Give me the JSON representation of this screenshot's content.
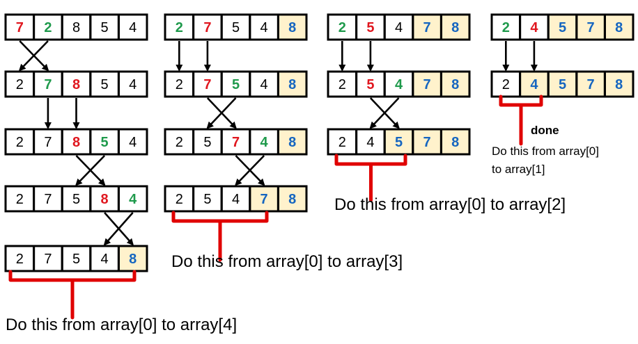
{
  "colors": {
    "default": "#000000",
    "red": "#e0171f",
    "green": "#1f9a4c",
    "blue": "#1565c0",
    "sorted_bg": "#fff2cc",
    "bracket": "#e00000"
  },
  "passes": [
    {
      "rows": [
        [
          {
            "v": "7",
            "c": "red"
          },
          {
            "v": "2",
            "c": "green"
          },
          {
            "v": "8"
          },
          {
            "v": "5"
          },
          {
            "v": "4"
          }
        ],
        [
          {
            "v": "2"
          },
          {
            "v": "7",
            "c": "green"
          },
          {
            "v": "8",
            "c": "red"
          },
          {
            "v": "5"
          },
          {
            "v": "4"
          }
        ],
        [
          {
            "v": "2"
          },
          {
            "v": "7"
          },
          {
            "v": "8",
            "c": "red"
          },
          {
            "v": "5",
            "c": "green"
          },
          {
            "v": "4"
          }
        ],
        [
          {
            "v": "2"
          },
          {
            "v": "7"
          },
          {
            "v": "5"
          },
          {
            "v": "8",
            "c": "red"
          },
          {
            "v": "4",
            "c": "green"
          }
        ],
        [
          {
            "v": "2"
          },
          {
            "v": "7"
          },
          {
            "v": "5"
          },
          {
            "v": "4"
          },
          {
            "v": "8",
            "c": "blue",
            "s": true
          }
        ]
      ],
      "transitions": [
        "swap",
        "down",
        "swap",
        "swap"
      ],
      "caption": "Do this from array[0] to array[4]"
    },
    {
      "rows": [
        [
          {
            "v": "2",
            "c": "green"
          },
          {
            "v": "7",
            "c": "red"
          },
          {
            "v": "5"
          },
          {
            "v": "4"
          },
          {
            "v": "8",
            "c": "blue",
            "s": true
          }
        ],
        [
          {
            "v": "2"
          },
          {
            "v": "7",
            "c": "red"
          },
          {
            "v": "5",
            "c": "green"
          },
          {
            "v": "4"
          },
          {
            "v": "8",
            "c": "blue",
            "s": true
          }
        ],
        [
          {
            "v": "2"
          },
          {
            "v": "5"
          },
          {
            "v": "7",
            "c": "red"
          },
          {
            "v": "4",
            "c": "green"
          },
          {
            "v": "8",
            "c": "blue",
            "s": true
          }
        ],
        [
          {
            "v": "2"
          },
          {
            "v": "5"
          },
          {
            "v": "4"
          },
          {
            "v": "7",
            "c": "blue",
            "s": true
          },
          {
            "v": "8",
            "c": "blue",
            "s": true
          }
        ]
      ],
      "transitions": [
        "down",
        "swap",
        "swap"
      ],
      "caption": "Do this from array[0] to array[3]"
    },
    {
      "rows": [
        [
          {
            "v": "2",
            "c": "green"
          },
          {
            "v": "5",
            "c": "red"
          },
          {
            "v": "4"
          },
          {
            "v": "7",
            "c": "blue",
            "s": true
          },
          {
            "v": "8",
            "c": "blue",
            "s": true
          }
        ],
        [
          {
            "v": "2"
          },
          {
            "v": "5",
            "c": "red"
          },
          {
            "v": "4",
            "c": "green"
          },
          {
            "v": "7",
            "c": "blue",
            "s": true
          },
          {
            "v": "8",
            "c": "blue",
            "s": true
          }
        ],
        [
          {
            "v": "2"
          },
          {
            "v": "4"
          },
          {
            "v": "5",
            "c": "blue",
            "s": true
          },
          {
            "v": "7",
            "c": "blue",
            "s": true
          },
          {
            "v": "8",
            "c": "blue",
            "s": true
          }
        ]
      ],
      "transitions": [
        "down",
        "swap"
      ],
      "caption": "Do this from array[0] to array[2]"
    },
    {
      "rows": [
        [
          {
            "v": "2",
            "c": "green"
          },
          {
            "v": "4",
            "c": "red"
          },
          {
            "v": "5",
            "c": "blue",
            "s": true
          },
          {
            "v": "7",
            "c": "blue",
            "s": true
          },
          {
            "v": "8",
            "c": "blue",
            "s": true
          }
        ],
        [
          {
            "v": "2"
          },
          {
            "v": "4",
            "c": "blue",
            "s": true
          },
          {
            "v": "5",
            "c": "blue",
            "s": true
          },
          {
            "v": "7",
            "c": "blue",
            "s": true
          },
          {
            "v": "8",
            "c": "blue",
            "s": true
          }
        ]
      ],
      "transitions": [
        "down"
      ],
      "done_label": "done",
      "caption_lines": [
        "Do this from array[0]",
        "to array[1]"
      ]
    }
  ]
}
